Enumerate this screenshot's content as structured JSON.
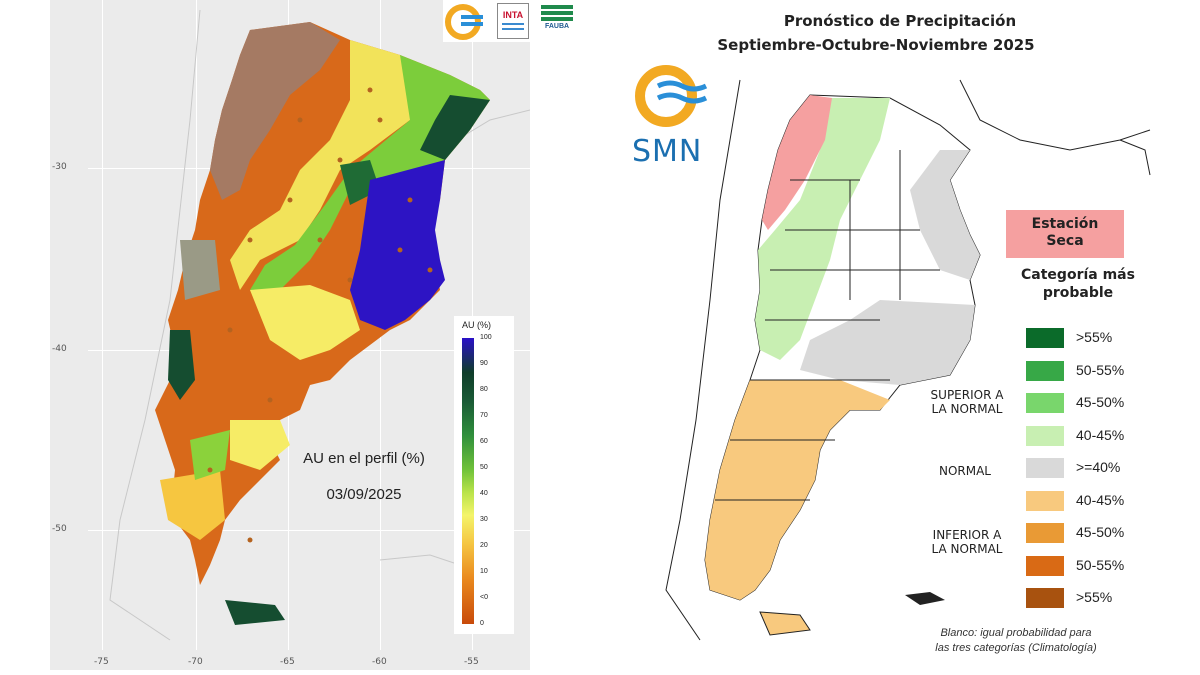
{
  "left_panel": {
    "caption_title": "AU en el perfil (%)",
    "caption_date": "03/09/2025",
    "scale": {
      "title": "AU (%)",
      "ticks": [
        "100",
        "90",
        "80",
        "70",
        "60",
        "50",
        "40",
        "30",
        "20",
        "10",
        "<0",
        "0"
      ]
    },
    "logos": {
      "inta": "INTA",
      "fauba": "FAUBA"
    },
    "axes": {
      "y_ticks": [
        "-30",
        "-40",
        "-50"
      ],
      "x_ticks": [
        "-75",
        "-70",
        "-65",
        "-60",
        "-55"
      ]
    },
    "colors": {
      "dry": "#c84a0a",
      "mid": "#f4f46a",
      "wet": "#0f3d2a",
      "saturated": "#2a10c8"
    }
  },
  "right_panel": {
    "title_line1": "Pronóstico de Precipitación",
    "title_line2": "Septiembre-Octubre-Noviembre 2025",
    "logo_text": "SMN",
    "dry_season_line1": "Estación",
    "dry_season_line2": "Seca",
    "legend_title_line1": "Categoría más",
    "legend_title_line2": "probable",
    "group_superior_line1": "SUPERIOR A",
    "group_superior_line2": "LA NORMAL",
    "group_normal": "NORMAL",
    "group_inferior_line1": "INFERIOR A",
    "group_inferior_line2": "LA NORMAL",
    "legend_items": [
      {
        "label": ">55%",
        "color": "#0b6b2a"
      },
      {
        "label": "50-55%",
        "color": "#37a847"
      },
      {
        "label": "45-50%",
        "color": "#79d66c"
      },
      {
        "label": "40-45%",
        "color": "#c8efb2"
      },
      {
        "label": ">=40%",
        "color": "#d9d9d9"
      },
      {
        "label": "40-45%",
        "color": "#f8c97e"
      },
      {
        "label": "45-50%",
        "color": "#e99a35"
      },
      {
        "label": "50-55%",
        "color": "#d96a15"
      },
      {
        "label": ">55%",
        "color": "#a8520f"
      }
    ],
    "footnote_line1": "Blanco: igual probabilidad para",
    "footnote_line2": "las tres categorías (Climatología)"
  }
}
